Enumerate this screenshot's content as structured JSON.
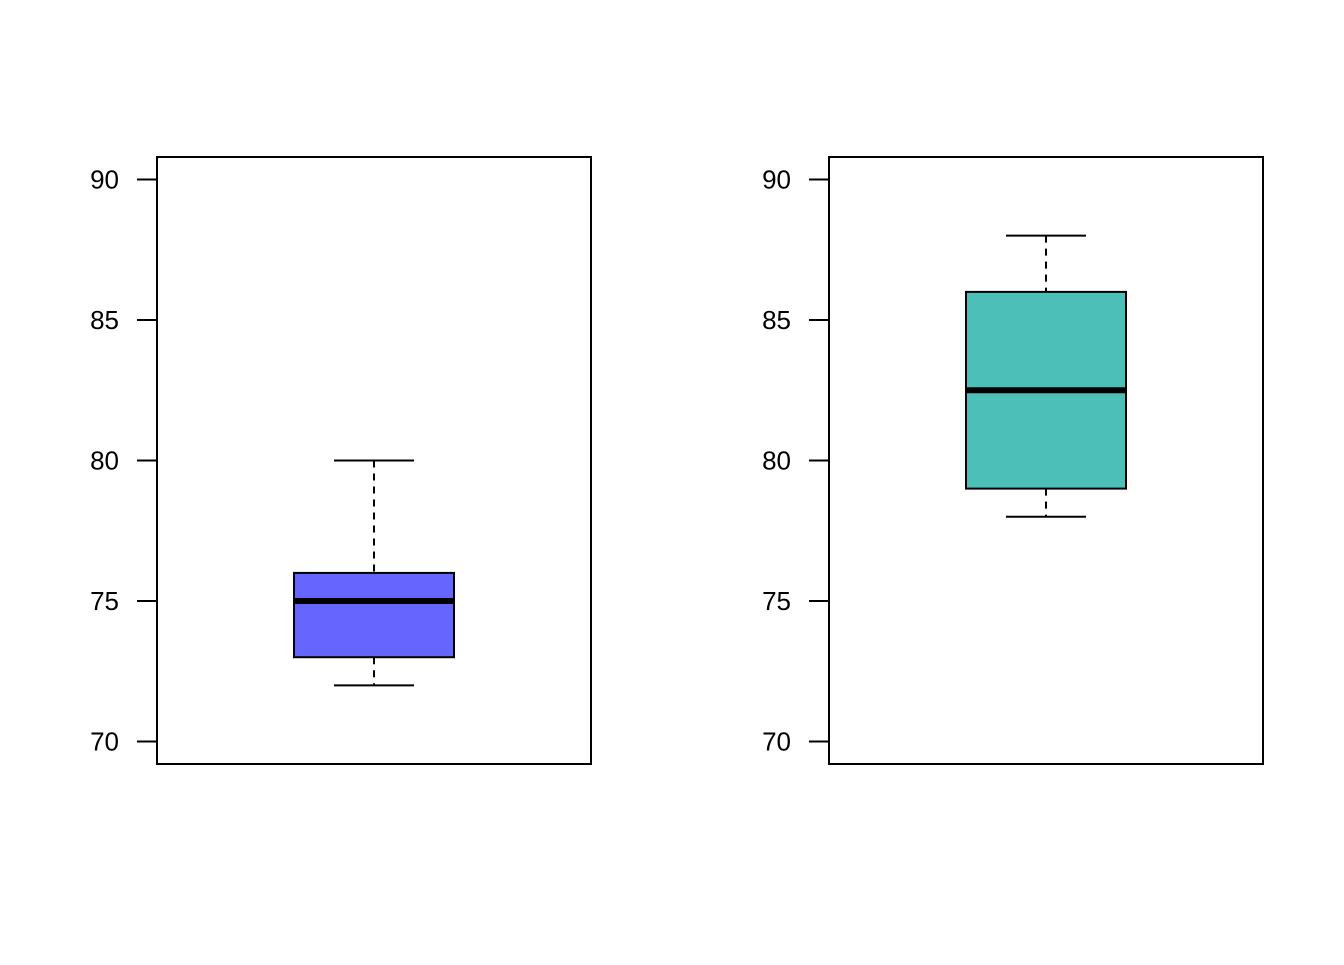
{
  "chart_data": [
    {
      "type": "box",
      "title": "",
      "xlabel": "",
      "ylabel": "",
      "ylim": [
        69.2,
        90.8
      ],
      "yticks": [
        70,
        75,
        80,
        85,
        90
      ],
      "ytick_labels": [
        "70",
        "75",
        "80",
        "85",
        "90"
      ],
      "grid": false,
      "box": {
        "min": 72,
        "q1": 73,
        "median": 75,
        "q3": 76,
        "max": 80,
        "fill": "#6666ff"
      }
    },
    {
      "type": "box",
      "title": "",
      "xlabel": "",
      "ylabel": "",
      "ylim": [
        69.2,
        90.8
      ],
      "yticks": [
        70,
        75,
        80,
        85,
        90
      ],
      "ytick_labels": [
        "70",
        "75",
        "80",
        "85",
        "90"
      ],
      "grid": false,
      "box": {
        "min": 78,
        "q1": 79,
        "median": 82.5,
        "q3": 86,
        "max": 88,
        "fill": "#4dbfb9"
      }
    }
  ]
}
